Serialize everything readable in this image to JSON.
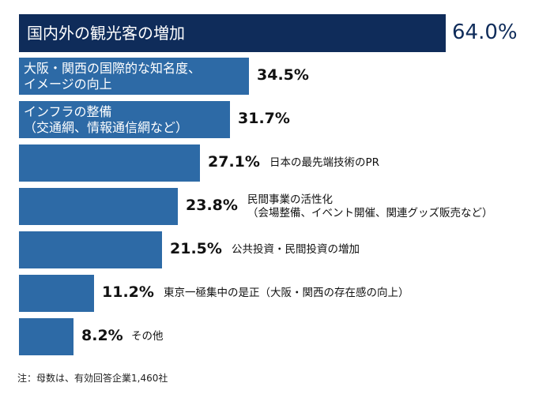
{
  "chart_data": {
    "type": "bar",
    "orientation": "horizontal",
    "unit": "%",
    "categories": [
      "国内外の観光客の増加",
      "大阪・関西の国際的な知名度、\nイメージの向上",
      "インフラの整備\n（交通網、情報通信網など）",
      "日本の最先端技術のPR",
      "民間事業の活性化\n（会場整備、イベント開催、関連グッズ販売など）",
      "公共投資・民間投資の増加",
      "東京一極集中の是正（大阪・関西の存在感の向上）",
      "その他"
    ],
    "values": [
      64.0,
      34.5,
      31.7,
      27.1,
      23.8,
      21.5,
      11.2,
      8.2
    ],
    "value_labels": [
      "64.0%",
      "34.5%",
      "31.7%",
      "27.1%",
      "23.8%",
      "21.5%",
      "11.2%",
      "8.2%"
    ],
    "label_inside": [
      true,
      true,
      true,
      false,
      false,
      false,
      false,
      false
    ],
    "xlim": [
      0,
      64.0
    ],
    "grid": false,
    "colors": {
      "highlight": "#0f2c5a",
      "bar": "#2d6aa6"
    },
    "note": "注：母数は、有効回答企業1,460社"
  }
}
